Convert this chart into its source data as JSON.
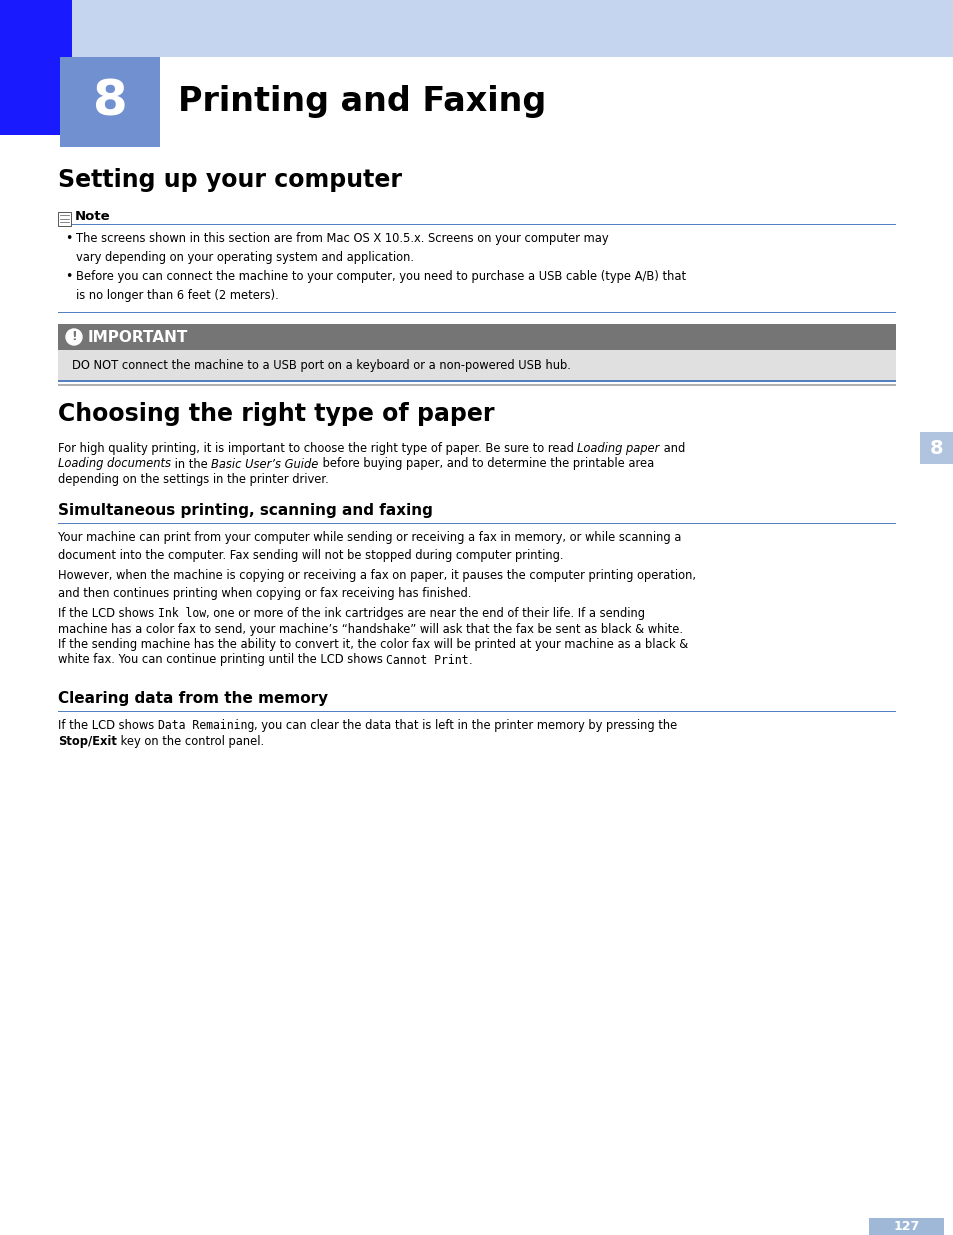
{
  "page_bg": "#ffffff",
  "header_bar_color": "#c5d5f0",
  "header_blue_block_color": "#1a1aff",
  "header_chapter_box_color": "#7090d0",
  "chapter_number": "8",
  "chapter_title": "Printing and Faxing",
  "section1_title": "Setting up your computer",
  "note_label": "Note",
  "note_line_color": "#5580c0",
  "note_bullet1": "The screens shown in this section are from Mac OS X 10.5.x. Screens on your computer may\nvary depending on your operating system and application.",
  "note_bullet2": "Before you can connect the machine to your computer, you need to purchase a USB cable (type A/B) that\nis no longer than 6 feet (2 meters).",
  "important_box_color": "#757575",
  "important_label": "IMPORTANT",
  "important_text": "DO NOT connect the machine to a USB port on a keyboard or a non-powered USB hub.",
  "section2_title": "Choosing the right type of paper",
  "section2_body1": "For high quality printing, it is important to choose the right type of paper. Be sure to read ",
  "section2_body1i": "Loading paper",
  "section2_body1b": " and",
  "section2_body2i": "Loading documents",
  "section2_body2b": " in the ",
  "section2_body2bi": "Basic User’s Guide",
  "section2_body2c": " before buying paper, and to determine the printable area",
  "section2_body3": "depending on the settings in the printer driver.",
  "section3_title": "Simultaneous printing, scanning and faxing",
  "section3_line_color": "#5580c0",
  "section3_p1": "Your machine can print from your computer while sending or receiving a fax in memory, or while scanning a\ndocument into the computer. Fax sending will not be stopped during computer printing.",
  "section3_p2": "However, when the machine is copying or receiving a fax on paper, it pauses the computer printing operation,\nand then continues printing when copying or fax receiving has finished.",
  "section4_title": "Clearing data from the memory",
  "section4_line_color": "#5580c0",
  "page_number": "127",
  "page_number_box_color": "#a0b8d8",
  "sidebar_box_color": "#b0c4e0"
}
